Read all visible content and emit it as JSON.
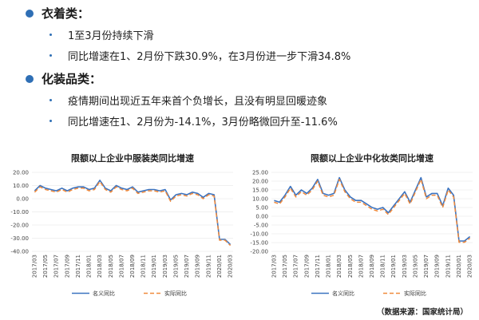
{
  "bullets": {
    "clothing": {
      "title": "衣着类：",
      "items": [
        "1至3月份持续下滑",
        "同比增速在1、2月份下跌30.9%，在3月份进一步下滑34.8%"
      ]
    },
    "cosmetics": {
      "title": "化装品类：",
      "items": [
        "疫情期间出现近五年来首个负增长，且没有明显回暖迹象",
        "同比增速在1、2月份为-14.1%，3月份略微回升至-11.6%"
      ]
    }
  },
  "colors": {
    "nominal": "#3b73c0",
    "actual": "#f08a3c",
    "bullet": "#2f6fb5"
  },
  "source": "（数据来源：国家统计局）",
  "chart_data": [
    {
      "type": "line",
      "title": "限额以上企业中服装类同比增速",
      "x": [
        "2017/03",
        "2017/04",
        "2017/05",
        "2017/06",
        "2017/07",
        "2017/08",
        "2017/09",
        "2017/10",
        "2017/11",
        "2017/12",
        "2018/01",
        "2018/02",
        "2018/03",
        "2018/04",
        "2018/05",
        "2018/06",
        "2018/07",
        "2018/08",
        "2018/09",
        "2018/10",
        "2018/11",
        "2018/12",
        "2019/01",
        "2019/02",
        "2019/03",
        "2019/04",
        "2019/05",
        "2019/06",
        "2019/07",
        "2019/08",
        "2019/09",
        "2019/10",
        "2019/11",
        "2019/12",
        "2020/01",
        "2020/02",
        "2020/03"
      ],
      "x_tick_labels": [
        "2017/03",
        "2017/05",
        "2017/07",
        "2017/09",
        "2017/11",
        "2018/01",
        "2018/03",
        "2018/05",
        "2018/07",
        "2018/09",
        "2018/11",
        "2019/01",
        "2019/03",
        "2019/05",
        "2019/07",
        "2019/09",
        "2019/11",
        "2020/01",
        "2020/03"
      ],
      "series": [
        {
          "name": "名义同比",
          "values": [
            6,
            10,
            8,
            7,
            6,
            8,
            6,
            8,
            9,
            9,
            7,
            8,
            14,
            8,
            6,
            10,
            8,
            7,
            9,
            5,
            6,
            7,
            7,
            6,
            7,
            -1,
            3,
            4,
            3,
            5,
            4,
            1,
            4,
            3,
            -30.9,
            -30.9,
            -34.8
          ]
        },
        {
          "name": "实际同比",
          "values": [
            5,
            9,
            7,
            6,
            5,
            7,
            5,
            7,
            8,
            8,
            6,
            7,
            13,
            7,
            5,
            9,
            7,
            6,
            8,
            4,
            5,
            6,
            6,
            5,
            6,
            -2,
            2,
            3,
            2,
            4,
            3,
            0,
            3,
            2,
            -31.5,
            -31.5,
            -35.5
          ]
        }
      ],
      "yticks": [
        20.0,
        10.0,
        0.0,
        -10.0,
        -20.0,
        -30.0,
        -40.0
      ],
      "ylim": [
        -40,
        20
      ]
    },
    {
      "type": "line",
      "title": "限额以上企业中化妆类同比增速",
      "x": [
        "2017/03",
        "2017/04",
        "2017/05",
        "2017/06",
        "2017/07",
        "2017/08",
        "2017/09",
        "2017/10",
        "2017/11",
        "2017/12",
        "2018/01",
        "2018/02",
        "2018/03",
        "2018/04",
        "2018/05",
        "2018/06",
        "2018/07",
        "2018/08",
        "2018/09",
        "2018/10",
        "2018/11",
        "2018/12",
        "2019/01",
        "2019/02",
        "2019/03",
        "2019/04",
        "2019/05",
        "2019/06",
        "2019/07",
        "2019/08",
        "2019/09",
        "2019/10",
        "2019/11",
        "2019/12",
        "2020/01",
        "2020/02",
        "2020/03"
      ],
      "x_tick_labels": [
        "2017/03",
        "2017/05",
        "2017/07",
        "2017/09",
        "2017/11",
        "2018/01",
        "2018/03",
        "2018/05",
        "2018/07",
        "2018/09",
        "2018/11",
        "2019/01",
        "2019/03",
        "2019/05",
        "2019/07",
        "2019/09",
        "2019/11",
        "2020/01",
        "2020/03"
      ],
      "series": [
        {
          "name": "名义同比",
          "values": [
            9,
            8,
            12,
            17,
            12,
            15,
            13,
            16,
            21,
            13,
            12,
            13,
            22,
            15,
            11,
            9,
            9,
            7,
            5,
            4,
            5,
            2,
            6,
            10,
            14,
            8,
            15,
            22,
            11,
            13,
            13,
            6,
            16,
            12,
            -14.1,
            -14.1,
            -11.6
          ]
        },
        {
          "name": "实际同比",
          "values": [
            8,
            7,
            11,
            16,
            11,
            14,
            12,
            15,
            20,
            12,
            11,
            12,
            21,
            14,
            10,
            8,
            8,
            6,
            4,
            3,
            4,
            1,
            5,
            9,
            13,
            7,
            14,
            21,
            10,
            12,
            12,
            5,
            15,
            11,
            -14.8,
            -14.8,
            -12.5
          ]
        }
      ],
      "yticks": [
        25.0,
        20.0,
        15.0,
        10.0,
        5.0,
        0.0,
        -5.0,
        -10.0,
        -15.0,
        -20.0
      ],
      "ylim": [
        -20,
        25
      ]
    }
  ]
}
